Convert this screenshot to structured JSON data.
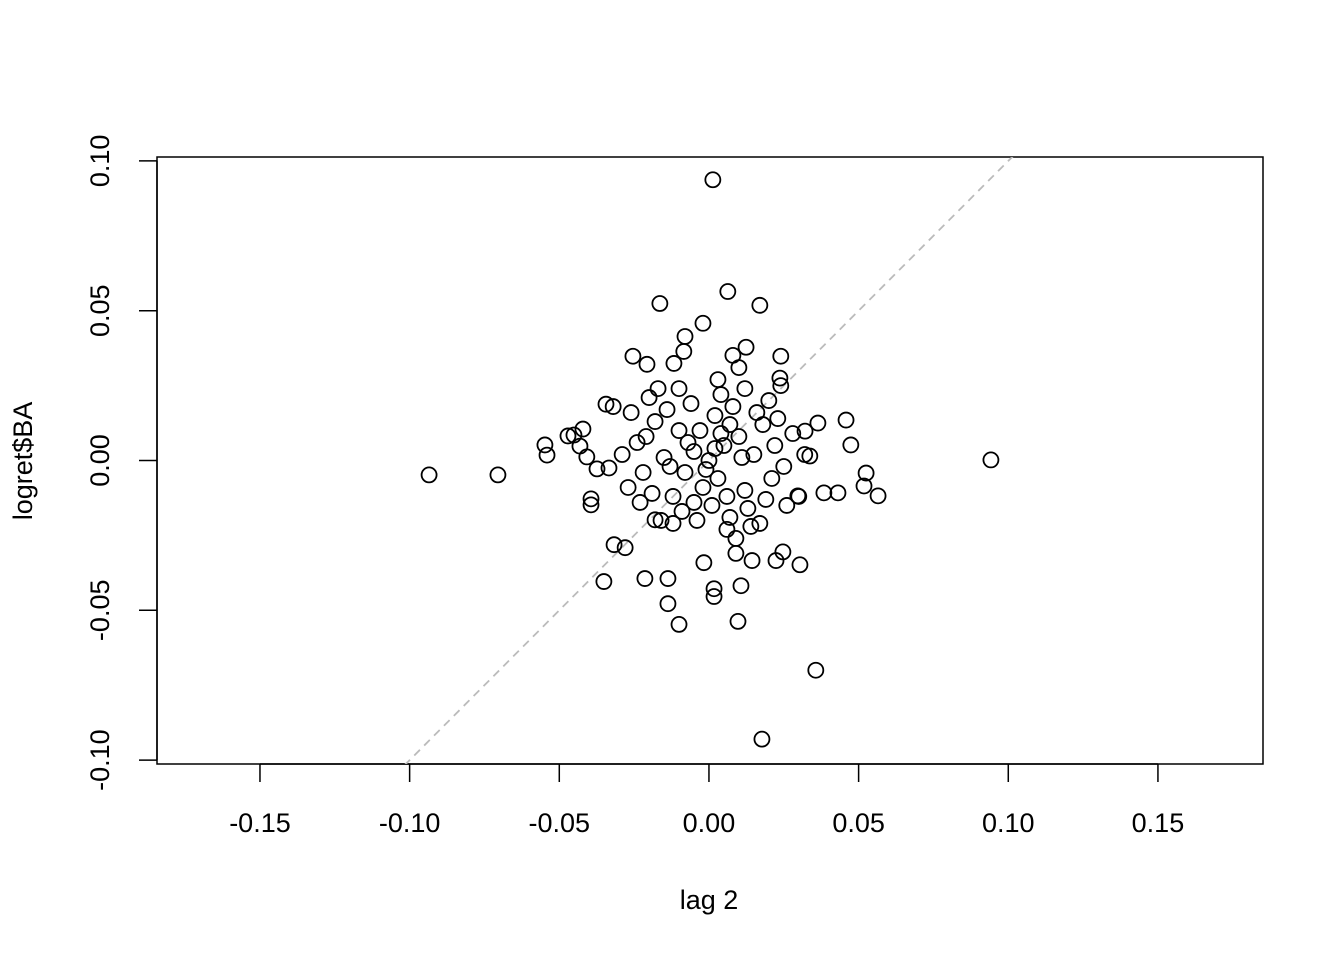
{
  "chart_data": {
    "type": "scatter",
    "x_label": "lag 2",
    "y_label": "logret$BA",
    "xlim": [
      -0.1844,
      0.1851
    ],
    "ylim": [
      -0.1013,
      0.1013
    ],
    "xticks": [
      {
        "value": -0.15,
        "label": "-0.15"
      },
      {
        "value": -0.1,
        "label": "-0.10"
      },
      {
        "value": -0.05,
        "label": "-0.05"
      },
      {
        "value": 0,
        "label": "0.00"
      },
      {
        "value": 0.05,
        "label": "0.05"
      },
      {
        "value": 0.1,
        "label": "0.10"
      },
      {
        "value": 0.15,
        "label": "0.15"
      }
    ],
    "yticks": [
      {
        "value": -0.1,
        "label": "-0.10"
      },
      {
        "value": -0.05,
        "label": "-0.05"
      },
      {
        "value": 0,
        "label": "0.00"
      },
      {
        "value": 0.05,
        "label": "0.05"
      },
      {
        "value": 0.1,
        "label": "0.10"
      }
    ],
    "color": "#000000",
    "abline": {
      "intercept": 0,
      "slope": 1,
      "color": "#bbbbbb",
      "dashed": true
    },
    "x": [
      0.0013,
      -0.0935,
      -0.0705,
      0.0942,
      0.0177,
      0.0357,
      0.0063,
      -0.0164,
      0.017,
      -0.002,
      -0.008,
      0.0458,
      0.0565,
      0.0525,
      0.0518,
      -0.0548,
      -0.0541,
      -0.0351,
      -0.0317,
      -0.0394,
      -0.0394,
      -0.0421,
      -0.0344,
      -0.01,
      0.0097,
      0.0017,
      0.0017,
      -0.0137,
      0.0107,
      0.0304,
      0.0247,
      0.0431,
      0.0384,
      0.0474,
      0.0364,
      0.024,
      -0.0254,
      0.0124,
      0.008,
      -0.0084,
      -0.0471,
      -0.0451,
      -0.0431,
      -0.0408,
      -0.0334,
      -0.028,
      -0.0214,
      -0.0137,
      -0.0017,
      0.0144,
      0.0224,
      0.0297,
      0.0337,
      0.0321,
      0.0237,
      -0.0117,
      -0.0207,
      -0.0374,
      -0.018,
      0,
      0.005,
      -0.005,
      0.003,
      -0.008,
      0.01,
      -0.01,
      0.012,
      -0.012,
      0.015,
      -0.015,
      0.002,
      0.001,
      0.008,
      -0.006,
      0.007,
      -0.004,
      0.018,
      -0.018,
      0.019,
      -0.019,
      0.022,
      -0.022,
      0.004,
      0.006,
      0.012,
      -0.01,
      0.014,
      -0.012,
      0.025,
      -0.024,
      0.02,
      -0.02,
      0.017,
      -0.016,
      0.028,
      -0.027,
      0.026,
      -0.026,
      0.003,
      0.009,
      -0.003,
      0.006,
      -0.007,
      0.011,
      -0.013,
      0.004,
      -0.002,
      0.016,
      -0.014,
      0.013,
      -0.009,
      0.021,
      -0.021,
      0.002,
      -0.001,
      0.007,
      -0.005,
      0.023,
      -0.023,
      0.03,
      -0.029,
      0.024,
      -0.017,
      0.01,
      0.009,
      0.032,
      -0.032
    ],
    "values": [
      0.0937,
      -0.0048,
      -0.0048,
      0.0002,
      -0.093,
      -0.07,
      0.0564,
      0.0524,
      0.0518,
      0.0458,
      0.0414,
      0.0135,
      -0.0118,
      -0.0042,
      -0.0085,
      0.0052,
      0.0018,
      -0.0404,
      -0.0281,
      -0.0128,
      -0.0148,
      0.0105,
      0.0188,
      -0.0547,
      -0.0537,
      -0.0428,
      -0.0454,
      -0.0478,
      -0.0418,
      -0.0348,
      -0.0305,
      -0.0108,
      -0.0108,
      0.0052,
      0.0125,
      0.0348,
      0.0348,
      0.0378,
      0.0351,
      0.0364,
      0.0082,
      0.0085,
      0.0048,
      0.0012,
      -0.0025,
      -0.0291,
      -0.0394,
      -0.0394,
      -0.0341,
      -0.0334,
      -0.0334,
      -0.0118,
      0.0015,
      0.0098,
      0.0275,
      0.0324,
      0.0321,
      -0.0028,
      -0.0198,
      0,
      0.005,
      0.003,
      -0.006,
      -0.004,
      0.008,
      0.01,
      -0.01,
      -0.012,
      0.002,
      0.001,
      0.015,
      -0.015,
      0.018,
      0.019,
      -0.019,
      -0.02,
      0.012,
      0.013,
      -0.013,
      -0.011,
      0.005,
      -0.004,
      0.022,
      -0.023,
      0.024,
      0.024,
      -0.022,
      -0.021,
      -0.002,
      0.006,
      0.02,
      0.021,
      -0.021,
      -0.02,
      0.009,
      -0.009,
      -0.015,
      0.016,
      0.027,
      -0.026,
      0.01,
      -0.012,
      0.006,
      0.001,
      -0.002,
      0.009,
      -0.009,
      0.016,
      0.017,
      -0.016,
      -0.017,
      -0.006,
      0.008,
      0.004,
      -0.003,
      0.012,
      -0.014,
      0.014,
      -0.014,
      -0.012,
      0.002,
      0.025,
      0.024,
      0.031,
      -0.031,
      0.002,
      0.018
    ]
  }
}
